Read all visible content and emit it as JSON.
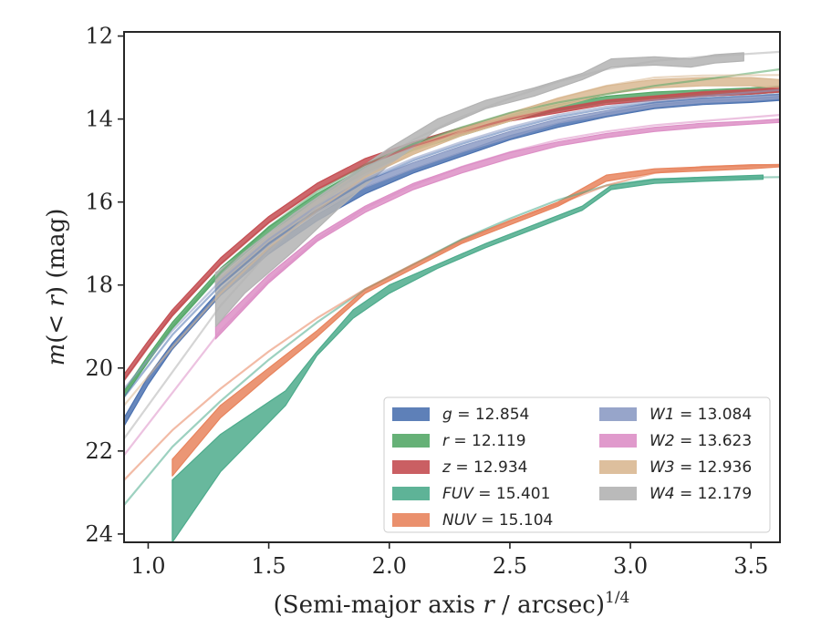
{
  "chart_data": {
    "type": "line",
    "xlabel_main": "(Semi-major axis ",
    "xlabel_var": "r",
    "xlabel_unit": " / arcsec)",
    "xlabel_exp": "1/4",
    "ylabel_m": "m",
    "ylabel_paren": "(< ",
    "ylabel_r": "r",
    "ylabel_close": ") (mag)",
    "xlim": [
      0.9,
      3.62
    ],
    "ylim": [
      24.2,
      11.9
    ],
    "y_inverted": true,
    "xticks": [
      1.0,
      1.5,
      2.0,
      2.5,
      3.0,
      3.5
    ],
    "xtick_labels": [
      "1.0",
      "1.5",
      "2.0",
      "2.5",
      "3.0",
      "3.5"
    ],
    "yticks": [
      12,
      14,
      16,
      18,
      20,
      22,
      24
    ],
    "ytick_labels": [
      "12",
      "14",
      "16",
      "18",
      "20",
      "22",
      "24"
    ],
    "grid": false,
    "legend_position": "lower-right",
    "series": [
      {
        "name": "g",
        "mag_label": "g = 12.854",
        "color": "#4c72b0",
        "fit_x": [
          0.9,
          1.1,
          1.3,
          1.5,
          1.7,
          1.9,
          2.1,
          2.3,
          2.5,
          2.7,
          2.9,
          3.1,
          3.3,
          3.62
        ],
        "fit_y": [
          20.7,
          19.2,
          18.0,
          17.0,
          16.2,
          15.5,
          15.0,
          14.6,
          14.25,
          13.95,
          13.75,
          13.6,
          13.5,
          13.4
        ],
        "band_x": [
          0.9,
          1.0,
          1.1,
          1.3,
          1.5,
          1.7,
          1.9,
          2.1,
          2.3,
          2.5,
          2.7,
          2.9,
          3.1,
          3.3,
          3.5,
          3.62
        ],
        "band_lo": [
          21.2,
          20.2,
          19.4,
          18.1,
          17.1,
          16.3,
          15.65,
          15.2,
          14.8,
          14.4,
          14.1,
          13.85,
          13.65,
          13.55,
          13.5,
          13.45
        ],
        "band_hi": [
          21.4,
          20.4,
          19.55,
          18.25,
          17.25,
          16.45,
          15.8,
          15.3,
          14.9,
          14.5,
          14.2,
          13.95,
          13.75,
          13.65,
          13.6,
          13.55
        ]
      },
      {
        "name": "r",
        "mag_label": "r = 12.119",
        "color": "#55a868",
        "fit_x": [
          0.9,
          1.1,
          1.3,
          1.5,
          1.7,
          1.9,
          2.1,
          2.3,
          2.5,
          2.7,
          2.9,
          3.1,
          3.3,
          3.62
        ],
        "fit_y": [
          20.6,
          19.0,
          17.7,
          16.6,
          15.75,
          15.1,
          14.6,
          14.2,
          13.85,
          13.6,
          13.4,
          13.2,
          13.05,
          12.8
        ],
        "band_x": [
          0.9,
          1.0,
          1.1,
          1.3,
          1.5,
          1.7,
          1.9,
          2.1,
          2.3,
          2.5,
          2.7,
          2.9,
          3.1,
          3.3,
          3.5,
          3.62
        ],
        "band_lo": [
          20.55,
          19.7,
          18.9,
          17.6,
          16.6,
          15.8,
          15.15,
          14.6,
          14.25,
          13.9,
          13.65,
          13.45,
          13.35,
          13.3,
          13.25,
          13.2
        ],
        "band_hi": [
          20.7,
          19.85,
          19.05,
          17.75,
          16.75,
          15.95,
          15.3,
          14.75,
          14.4,
          14.05,
          13.8,
          13.6,
          13.5,
          13.45,
          13.4,
          13.35
        ]
      },
      {
        "name": "z",
        "mag_label": "z = 12.934",
        "color": "#c44e52",
        "fit_x": [
          0.9,
          1.1,
          1.3,
          1.5,
          1.7,
          1.9,
          2.1,
          2.3,
          2.5,
          2.7,
          2.9,
          3.1,
          3.3,
          3.62
        ],
        "fit_y": [
          20.3,
          18.7,
          17.5,
          16.5,
          15.7,
          15.1,
          14.65,
          14.3,
          14.0,
          13.75,
          13.55,
          13.45,
          13.35,
          13.25
        ],
        "band_x": [
          0.9,
          1.0,
          1.1,
          1.3,
          1.5,
          1.7,
          1.9,
          2.1,
          2.3,
          2.5,
          2.7,
          2.9,
          3.1,
          3.3,
          3.5,
          3.62
        ],
        "band_lo": [
          20.15,
          19.35,
          18.6,
          17.35,
          16.35,
          15.55,
          14.95,
          14.55,
          14.2,
          13.95,
          13.75,
          13.55,
          13.45,
          13.35,
          13.3,
          13.25
        ],
        "band_hi": [
          20.3,
          19.5,
          18.75,
          17.5,
          16.5,
          15.7,
          15.1,
          14.7,
          14.35,
          14.05,
          13.85,
          13.65,
          13.55,
          13.45,
          13.4,
          13.35
        ]
      },
      {
        "name": "FUV",
        "mag_label": "FUV = 15.401",
        "color": "#4dab8c",
        "fit_x": [
          0.9,
          1.1,
          1.3,
          1.5,
          1.7,
          1.9,
          2.1,
          2.3,
          2.5,
          2.7,
          2.9,
          3.1,
          3.3,
          3.62
        ],
        "fit_y": [
          23.3,
          21.9,
          20.8,
          19.8,
          18.9,
          18.1,
          17.5,
          16.9,
          16.4,
          15.95,
          15.6,
          15.45,
          15.42,
          15.4
        ],
        "band_x": [
          1.1,
          1.3,
          1.57,
          1.7,
          1.85,
          2.0,
          2.2,
          2.4,
          2.6,
          2.8,
          2.92,
          3.1,
          3.3,
          3.55
        ],
        "band_lo": [
          22.7,
          21.6,
          20.55,
          19.6,
          18.6,
          18.0,
          17.5,
          17.0,
          16.55,
          16.1,
          15.6,
          15.45,
          15.4,
          15.35
        ],
        "band_hi": [
          24.2,
          22.5,
          20.9,
          19.7,
          18.8,
          18.2,
          17.6,
          17.1,
          16.65,
          16.2,
          15.7,
          15.55,
          15.5,
          15.45
        ]
      },
      {
        "name": "NUV",
        "mag_label": "NUV = 15.104",
        "color": "#e8845d",
        "fit_x": [
          0.9,
          1.1,
          1.3,
          1.5,
          1.7,
          1.9,
          2.1,
          2.3,
          2.5,
          2.7,
          2.9,
          3.1,
          3.3,
          3.62
        ],
        "fit_y": [
          22.7,
          21.5,
          20.5,
          19.6,
          18.8,
          18.1,
          17.5,
          16.95,
          16.45,
          16.05,
          15.6,
          15.3,
          15.15,
          15.1
        ],
        "band_x": [
          1.1,
          1.3,
          1.5,
          1.7,
          1.9,
          2.1,
          2.3,
          2.5,
          2.7,
          2.9,
          3.1,
          3.3,
          3.5,
          3.62
        ],
        "band_lo": [
          22.2,
          20.9,
          20.0,
          19.1,
          18.1,
          17.5,
          16.9,
          16.45,
          16.0,
          15.35,
          15.2,
          15.15,
          15.1,
          15.1
        ],
        "band_hi": [
          22.6,
          21.2,
          20.2,
          19.25,
          18.2,
          17.6,
          17.0,
          16.55,
          16.1,
          15.5,
          15.3,
          15.25,
          15.2,
          15.15
        ]
      },
      {
        "name": "W1",
        "mag_label": "W1 = 13.084",
        "color": "#8c9bc4",
        "fit_x": [
          0.9,
          1.1,
          1.3,
          1.5,
          1.7,
          1.9,
          2.1,
          2.3,
          2.5,
          2.7,
          2.9,
          3.1,
          3.3,
          3.62
        ],
        "fit_y": [
          20.5,
          19.1,
          17.9,
          16.9,
          16.1,
          15.45,
          14.95,
          14.55,
          14.2,
          13.9,
          13.7,
          13.55,
          13.45,
          13.3
        ],
        "band_x": [
          1.28,
          1.5,
          1.7,
          1.9,
          2.1,
          2.3,
          2.5,
          2.7,
          2.9,
          3.1,
          3.3,
          3.5,
          3.62
        ],
        "band_lo": [
          17.9,
          16.9,
          16.1,
          15.5,
          15.05,
          14.65,
          14.3,
          14.0,
          13.8,
          13.6,
          13.5,
          13.45,
          13.4
        ],
        "band_hi": [
          18.1,
          17.05,
          16.25,
          15.65,
          15.2,
          14.8,
          14.45,
          14.1,
          13.9,
          13.7,
          13.6,
          13.55,
          13.5
        ]
      },
      {
        "name": "W2",
        "mag_label": "W2 = 13.623",
        "color": "#dd8fc6",
        "fit_x": [
          0.9,
          1.1,
          1.3,
          1.5,
          1.7,
          1.9,
          2.1,
          2.3,
          2.5,
          2.7,
          2.9,
          3.1,
          3.3,
          3.62
        ],
        "fit_y": [
          22.1,
          20.6,
          19.1,
          17.9,
          16.9,
          16.15,
          15.6,
          15.15,
          14.8,
          14.5,
          14.3,
          14.15,
          14.05,
          13.9
        ],
        "band_x": [
          1.28,
          1.5,
          1.7,
          1.9,
          2.1,
          2.3,
          2.5,
          2.7,
          2.9,
          3.1,
          3.3,
          3.5,
          3.62
        ],
        "band_lo": [
          19.0,
          17.75,
          16.8,
          16.1,
          15.55,
          15.15,
          14.8,
          14.55,
          14.35,
          14.2,
          14.1,
          14.05,
          14.0
        ],
        "band_hi": [
          19.3,
          17.95,
          16.95,
          16.25,
          15.7,
          15.3,
          14.95,
          14.65,
          14.45,
          14.3,
          14.2,
          14.12,
          14.08
        ]
      },
      {
        "name": "W3",
        "mag_label": "W3 = 12.936",
        "color": "#d9b892",
        "fit_x": [
          0.9,
          1.1,
          1.3,
          1.5,
          1.7,
          1.9,
          2.1,
          2.3,
          2.5,
          2.7,
          2.9,
          3.1,
          3.3,
          3.62
        ],
        "fit_y": [
          20.9,
          19.5,
          18.2,
          17.1,
          16.2,
          15.4,
          14.8,
          14.3,
          13.9,
          13.5,
          13.2,
          13.0,
          12.95,
          12.94
        ],
        "band_x": [
          1.28,
          1.5,
          1.7,
          1.9,
          2.1,
          2.3,
          2.5,
          2.7,
          2.9,
          3.1,
          3.3,
          3.5,
          3.62
        ],
        "band_lo": [
          17.9,
          16.8,
          15.95,
          15.2,
          14.65,
          14.2,
          13.85,
          13.5,
          13.2,
          13.05,
          13.0,
          13.0,
          13.05
        ],
        "band_hi": [
          18.1,
          17.0,
          16.15,
          15.4,
          14.85,
          14.4,
          14.05,
          13.7,
          13.4,
          13.25,
          13.2,
          13.2,
          13.25
        ]
      },
      {
        "name": "W4",
        "mag_label": "W4 = 12.179",
        "color": "#b3b3b3",
        "fit_x": [
          0.9,
          1.1,
          1.3,
          1.5,
          1.7,
          1.9,
          2.1,
          2.3,
          2.5,
          2.7,
          2.9,
          3.1,
          3.3,
          3.62
        ],
        "fit_y": [
          21.7,
          20.1,
          18.5,
          17.2,
          16.1,
          15.2,
          14.5,
          13.95,
          13.5,
          13.1,
          12.8,
          12.6,
          12.5,
          12.38
        ],
        "band_x": [
          1.28,
          1.4,
          1.6,
          1.8,
          2.0,
          2.2,
          2.4,
          2.6,
          2.8,
          2.92,
          3.1,
          3.25,
          3.35,
          3.47
        ],
        "band_lo": [
          17.7,
          17.2,
          16.3,
          15.5,
          14.7,
          14.0,
          13.55,
          13.25,
          12.9,
          12.55,
          12.5,
          12.55,
          12.45,
          12.4
        ],
        "band_hi": [
          19.0,
          18.2,
          17.2,
          16.1,
          15.1,
          14.25,
          13.75,
          13.45,
          13.05,
          12.75,
          12.7,
          12.75,
          12.65,
          12.6
        ]
      }
    ]
  }
}
